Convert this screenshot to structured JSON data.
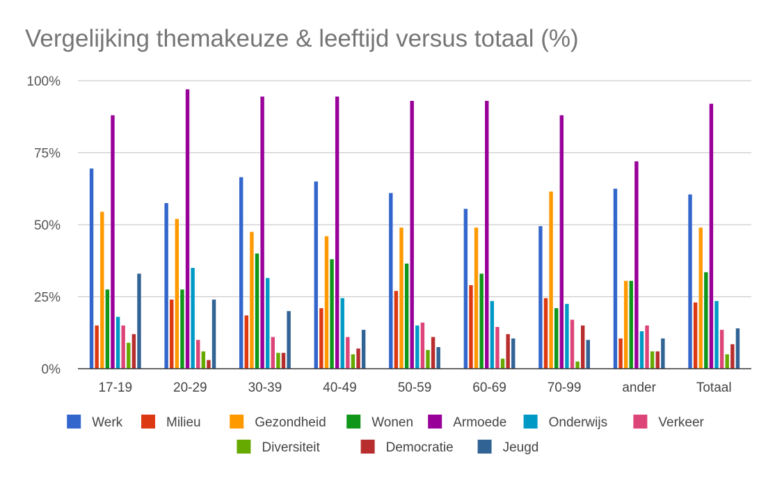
{
  "chart_data": {
    "type": "bar",
    "title": "Vergelijking themakeuze & leeftijd versus totaal (%)",
    "xlabel": "",
    "ylabel": "",
    "ylim": [
      0,
      100
    ],
    "yticks": [
      "0%",
      "25%",
      "50%",
      "75%",
      "100%"
    ],
    "ytick_values": [
      0,
      25,
      50,
      75,
      100
    ],
    "grid": true,
    "legend_position": "bottom",
    "categories": [
      "17-19",
      "20-29",
      "30-39",
      "40-49",
      "50-59",
      "60-69",
      "70-99",
      "ander",
      "Totaal"
    ],
    "series": [
      {
        "name": "Werk",
        "color": "#3366cc",
        "values": [
          69.5,
          57.5,
          66.5,
          65,
          61,
          55.5,
          49.5,
          62.5,
          60.5
        ]
      },
      {
        "name": "Milieu",
        "color": "#dc3912",
        "values": [
          15,
          24,
          18.5,
          21,
          27,
          29,
          24.5,
          10.5,
          23
        ]
      },
      {
        "name": "Gezondheid",
        "color": "#ff9900",
        "values": [
          54.5,
          52,
          47.5,
          46,
          49,
          49,
          61.5,
          30.5,
          49
        ]
      },
      {
        "name": "Wonen",
        "color": "#109618",
        "values": [
          27.5,
          27.5,
          40,
          38,
          36.5,
          33,
          21,
          30.5,
          33.5
        ]
      },
      {
        "name": "Armoede",
        "color": "#990099",
        "values": [
          88,
          97,
          94.5,
          94.5,
          93,
          93,
          88,
          72,
          92
        ]
      },
      {
        "name": "Onderwijs",
        "color": "#0099c6",
        "values": [
          18,
          35,
          31.5,
          24.5,
          15,
          23.5,
          22.5,
          13,
          23.5
        ]
      },
      {
        "name": "Verkeer",
        "color": "#dd4477",
        "values": [
          15,
          10,
          11,
          11,
          16,
          14.5,
          17,
          15,
          13.5
        ]
      },
      {
        "name": "Diversiteit",
        "color": "#66aa00",
        "values": [
          9,
          6,
          5.5,
          5,
          6.5,
          3.5,
          2.5,
          6,
          5
        ]
      },
      {
        "name": "Democratie",
        "color": "#b82e2e",
        "values": [
          12,
          3,
          5.5,
          7,
          11,
          12,
          15,
          6,
          8.5
        ]
      },
      {
        "name": "Jeugd",
        "color": "#316395",
        "values": [
          33,
          24,
          20,
          13.5,
          7.5,
          10.5,
          10,
          10.5,
          14
        ]
      }
    ]
  }
}
